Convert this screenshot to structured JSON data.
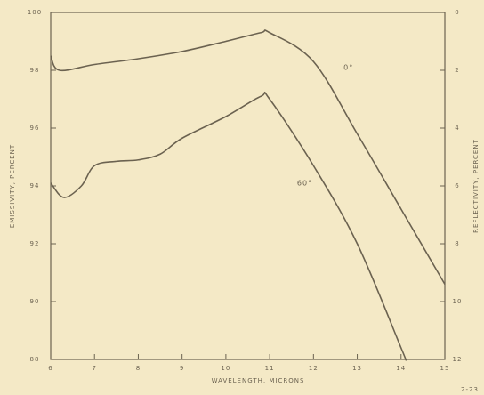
{
  "chart_data": {
    "type": "line",
    "x_label": "WAVELENGTH, MICRONS",
    "y_label": "EMISSIVITY, PERCENT",
    "y2_label": "REFLECTIVITY, PERCENT",
    "xlim": [
      6,
      15
    ],
    "xticks": [
      6,
      7,
      8,
      9,
      10,
      11,
      12,
      13,
      14,
      15
    ],
    "ylim": [
      88,
      100
    ],
    "yticks": [
      88,
      90,
      92,
      94,
      96,
      98,
      100
    ],
    "y2lim": [
      12,
      0
    ],
    "y2ticks": [
      0,
      2,
      4,
      6,
      8,
      10,
      12
    ],
    "series": [
      {
        "name": "0°",
        "color": "#6b6250",
        "x": [
          6,
          6.2,
          7,
          8,
          9,
          10,
          10.8,
          11,
          12,
          13,
          14,
          15
        ],
        "values": [
          98.5,
          98.0,
          98.2,
          98.4,
          98.65,
          99.0,
          99.3,
          99.3,
          98.3,
          95.8,
          93.2,
          90.6
        ]
      },
      {
        "name": "60°",
        "color": "#6b6250",
        "x": [
          6,
          6.3,
          6.7,
          7,
          7.5,
          8,
          8.5,
          9,
          10,
          10.8,
          11,
          12,
          13,
          14,
          14.1
        ],
        "values": [
          94.1,
          93.6,
          94.0,
          94.7,
          94.85,
          94.9,
          95.1,
          95.65,
          96.4,
          97.1,
          97.0,
          94.7,
          92.0,
          88.4,
          88.0
        ]
      }
    ],
    "annotations": [
      {
        "text": "0°",
        "x": 12.8,
        "y": 98.1
      },
      {
        "text": "60°",
        "x": 11.8,
        "y": 94.1
      }
    ],
    "corner_note": "2-23"
  }
}
